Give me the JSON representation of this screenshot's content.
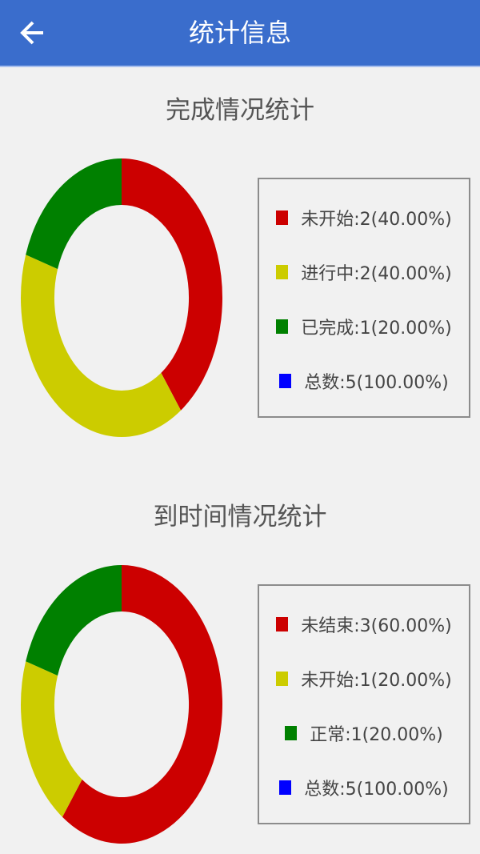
{
  "header": {
    "title": "统计信息",
    "back_icon": "arrow-left-icon"
  },
  "chart_data": [
    {
      "type": "pie",
      "donut": true,
      "title": "完成情况统计",
      "slices": [
        {
          "label": "未开始",
          "value": 2,
          "percent": "40.00%",
          "color": "#cc0000"
        },
        {
          "label": "进行中",
          "value": 2,
          "percent": "40.00%",
          "color": "#cccc00"
        },
        {
          "label": "已完成",
          "value": 1,
          "percent": "20.00%",
          "color": "#008000"
        }
      ],
      "legend": [
        "未开始:2(40.00%)",
        "进行中:2(40.00%)",
        "已完成:1(20.00%)",
        "总数:5(100.00%)"
      ],
      "legend_colors": [
        "#cc0000",
        "#cccc00",
        "#008000",
        "#0000ff"
      ],
      "legend_position": "right"
    },
    {
      "type": "pie",
      "donut": true,
      "title": "到时间情况统计",
      "slices": [
        {
          "label": "未结束",
          "value": 3,
          "percent": "60.00%",
          "color": "#cc0000"
        },
        {
          "label": "未开始",
          "value": 1,
          "percent": "20.00%",
          "color": "#cccc00"
        },
        {
          "label": "正常",
          "value": 1,
          "percent": "20.00%",
          "color": "#008000"
        }
      ],
      "legend": [
        "未结束:3(60.00%)",
        "未开始:1(20.00%)",
        "正常:1(20.00%)",
        "总数:5(100.00%)"
      ],
      "legend_colors": [
        "#cc0000",
        "#cccc00",
        "#008000",
        "#0000ff"
      ],
      "legend_position": "right"
    }
  ]
}
